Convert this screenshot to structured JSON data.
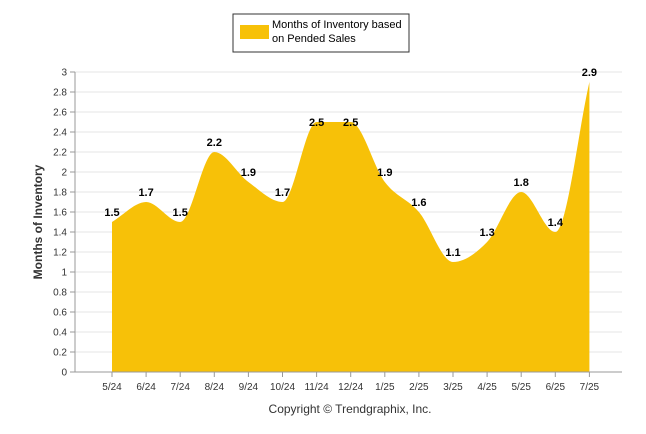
{
  "chart_data": {
    "type": "area",
    "categories": [
      "5/24",
      "6/24",
      "7/24",
      "8/24",
      "9/24",
      "10/24",
      "11/24",
      "12/24",
      "1/25",
      "2/25",
      "3/25",
      "4/25",
      "5/25",
      "6/25",
      "7/25"
    ],
    "series": [
      {
        "name": "Months of Inventory based on Pended Sales",
        "values": [
          1.5,
          1.7,
          1.5,
          2.2,
          1.9,
          1.7,
          2.5,
          2.5,
          1.9,
          1.6,
          1.1,
          1.3,
          1.8,
          1.4,
          2.9
        ],
        "color": "#F7C108"
      }
    ],
    "data_labels": [
      "1.5",
      "1.7",
      "1.5",
      "2.2",
      "1.9",
      "1.7",
      "2.5",
      "2.5",
      "1.9",
      "1.6",
      "1.1",
      "1.3",
      "1.8",
      "1.4",
      "2.9"
    ],
    "xlabel": "",
    "ylabel": "Months of Inventory",
    "ylim": [
      0,
      3
    ],
    "y_ticks": [
      "0",
      "0.2",
      "0.4",
      "0.6",
      "0.8",
      "1",
      "1.2",
      "1.4",
      "1.6",
      "1.8",
      "2",
      "2.2",
      "2.4",
      "2.6",
      "2.8",
      "3"
    ],
    "grid": true,
    "legend_position": "top-center"
  },
  "legend": {
    "line1": "Months of Inventory based",
    "line2": "on Pended Sales"
  },
  "credit": "Copyright © Trendgraphix, Inc."
}
